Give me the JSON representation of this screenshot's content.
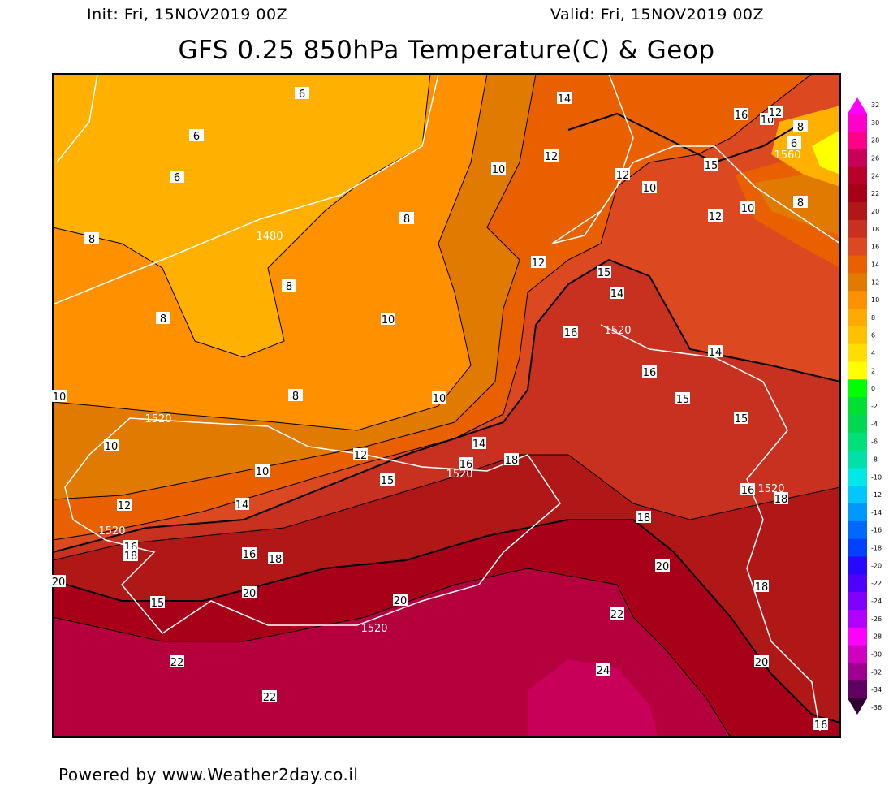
{
  "header": {
    "init": "Init: Fri, 15NOV2019 00Z",
    "valid": "Valid: Fri, 15NOV2019 00Z",
    "title": "GFS 0.25 850hPa Temperature(C) & Geop"
  },
  "footer": "Powered by www.Weather2day.co.il",
  "colorbar": {
    "labels": [
      "32",
      "30",
      "28",
      "26",
      "24",
      "22",
      "20",
      "18",
      "16",
      "14",
      "12",
      "10",
      "8",
      "6",
      "4",
      "2",
      "0",
      "-2",
      "-4",
      "-6",
      "-8",
      "-10",
      "-12",
      "-14",
      "-16",
      "-18",
      "-20",
      "-22",
      "-24",
      "-26",
      "-28",
      "-30",
      "-32",
      "-34",
      "-36"
    ],
    "colors": [
      "#ff00ff",
      "#ff00cc",
      "#ff0088",
      "#c8005a",
      "#b8002a",
      "#a80018",
      "#b01818",
      "#c83020",
      "#dc4820",
      "#e86000",
      "#e07a00",
      "#ff9000",
      "#ffaa00",
      "#ffc000",
      "#ffdd00",
      "#ffff00",
      "#00ff00",
      "#00e030",
      "#00d850",
      "#00e078",
      "#00e0a8",
      "#00e8e8",
      "#00c8ff",
      "#0098ff",
      "#0068ff",
      "#0040ff",
      "#2808ff",
      "#5000ff",
      "#8000ff",
      "#b000ff",
      "#ff00ff",
      "#d000c0",
      "#a00090",
      "#600060",
      "#300030"
    ]
  },
  "map_colors": {
    "t24": "#c8005a",
    "t22": "#b4003c",
    "t20": "#a80018",
    "t18": "#b01818",
    "t16": "#c83020",
    "t14": "#dc4820",
    "t12": "#e86000",
    "t10": "#e07a00",
    "t8": "#ff9000",
    "t6": "#ffb000",
    "t2": "#ffff00"
  },
  "contour_labels": [
    "6",
    "6",
    "6",
    "8",
    "1480",
    "8",
    "8",
    "8",
    "10",
    "8",
    "10",
    "10",
    "1520",
    "10",
    "12",
    "10",
    "14",
    "16",
    "1520",
    "18",
    "15",
    "12",
    "14",
    "1520",
    "16",
    "18",
    "16",
    "18",
    "15",
    "20",
    "20",
    "1520",
    "20",
    "22",
    "22",
    "22",
    "24",
    "20",
    "18",
    "20",
    "18",
    "16",
    "16",
    "1520",
    "18",
    "15",
    "15",
    "16",
    "14",
    "1520",
    "16",
    "14",
    "15",
    "12",
    "12",
    "10",
    "8",
    "12",
    "10",
    "10",
    "12",
    "14",
    "16",
    "10",
    "12",
    "8",
    "6",
    "1560",
    "15"
  ]
}
